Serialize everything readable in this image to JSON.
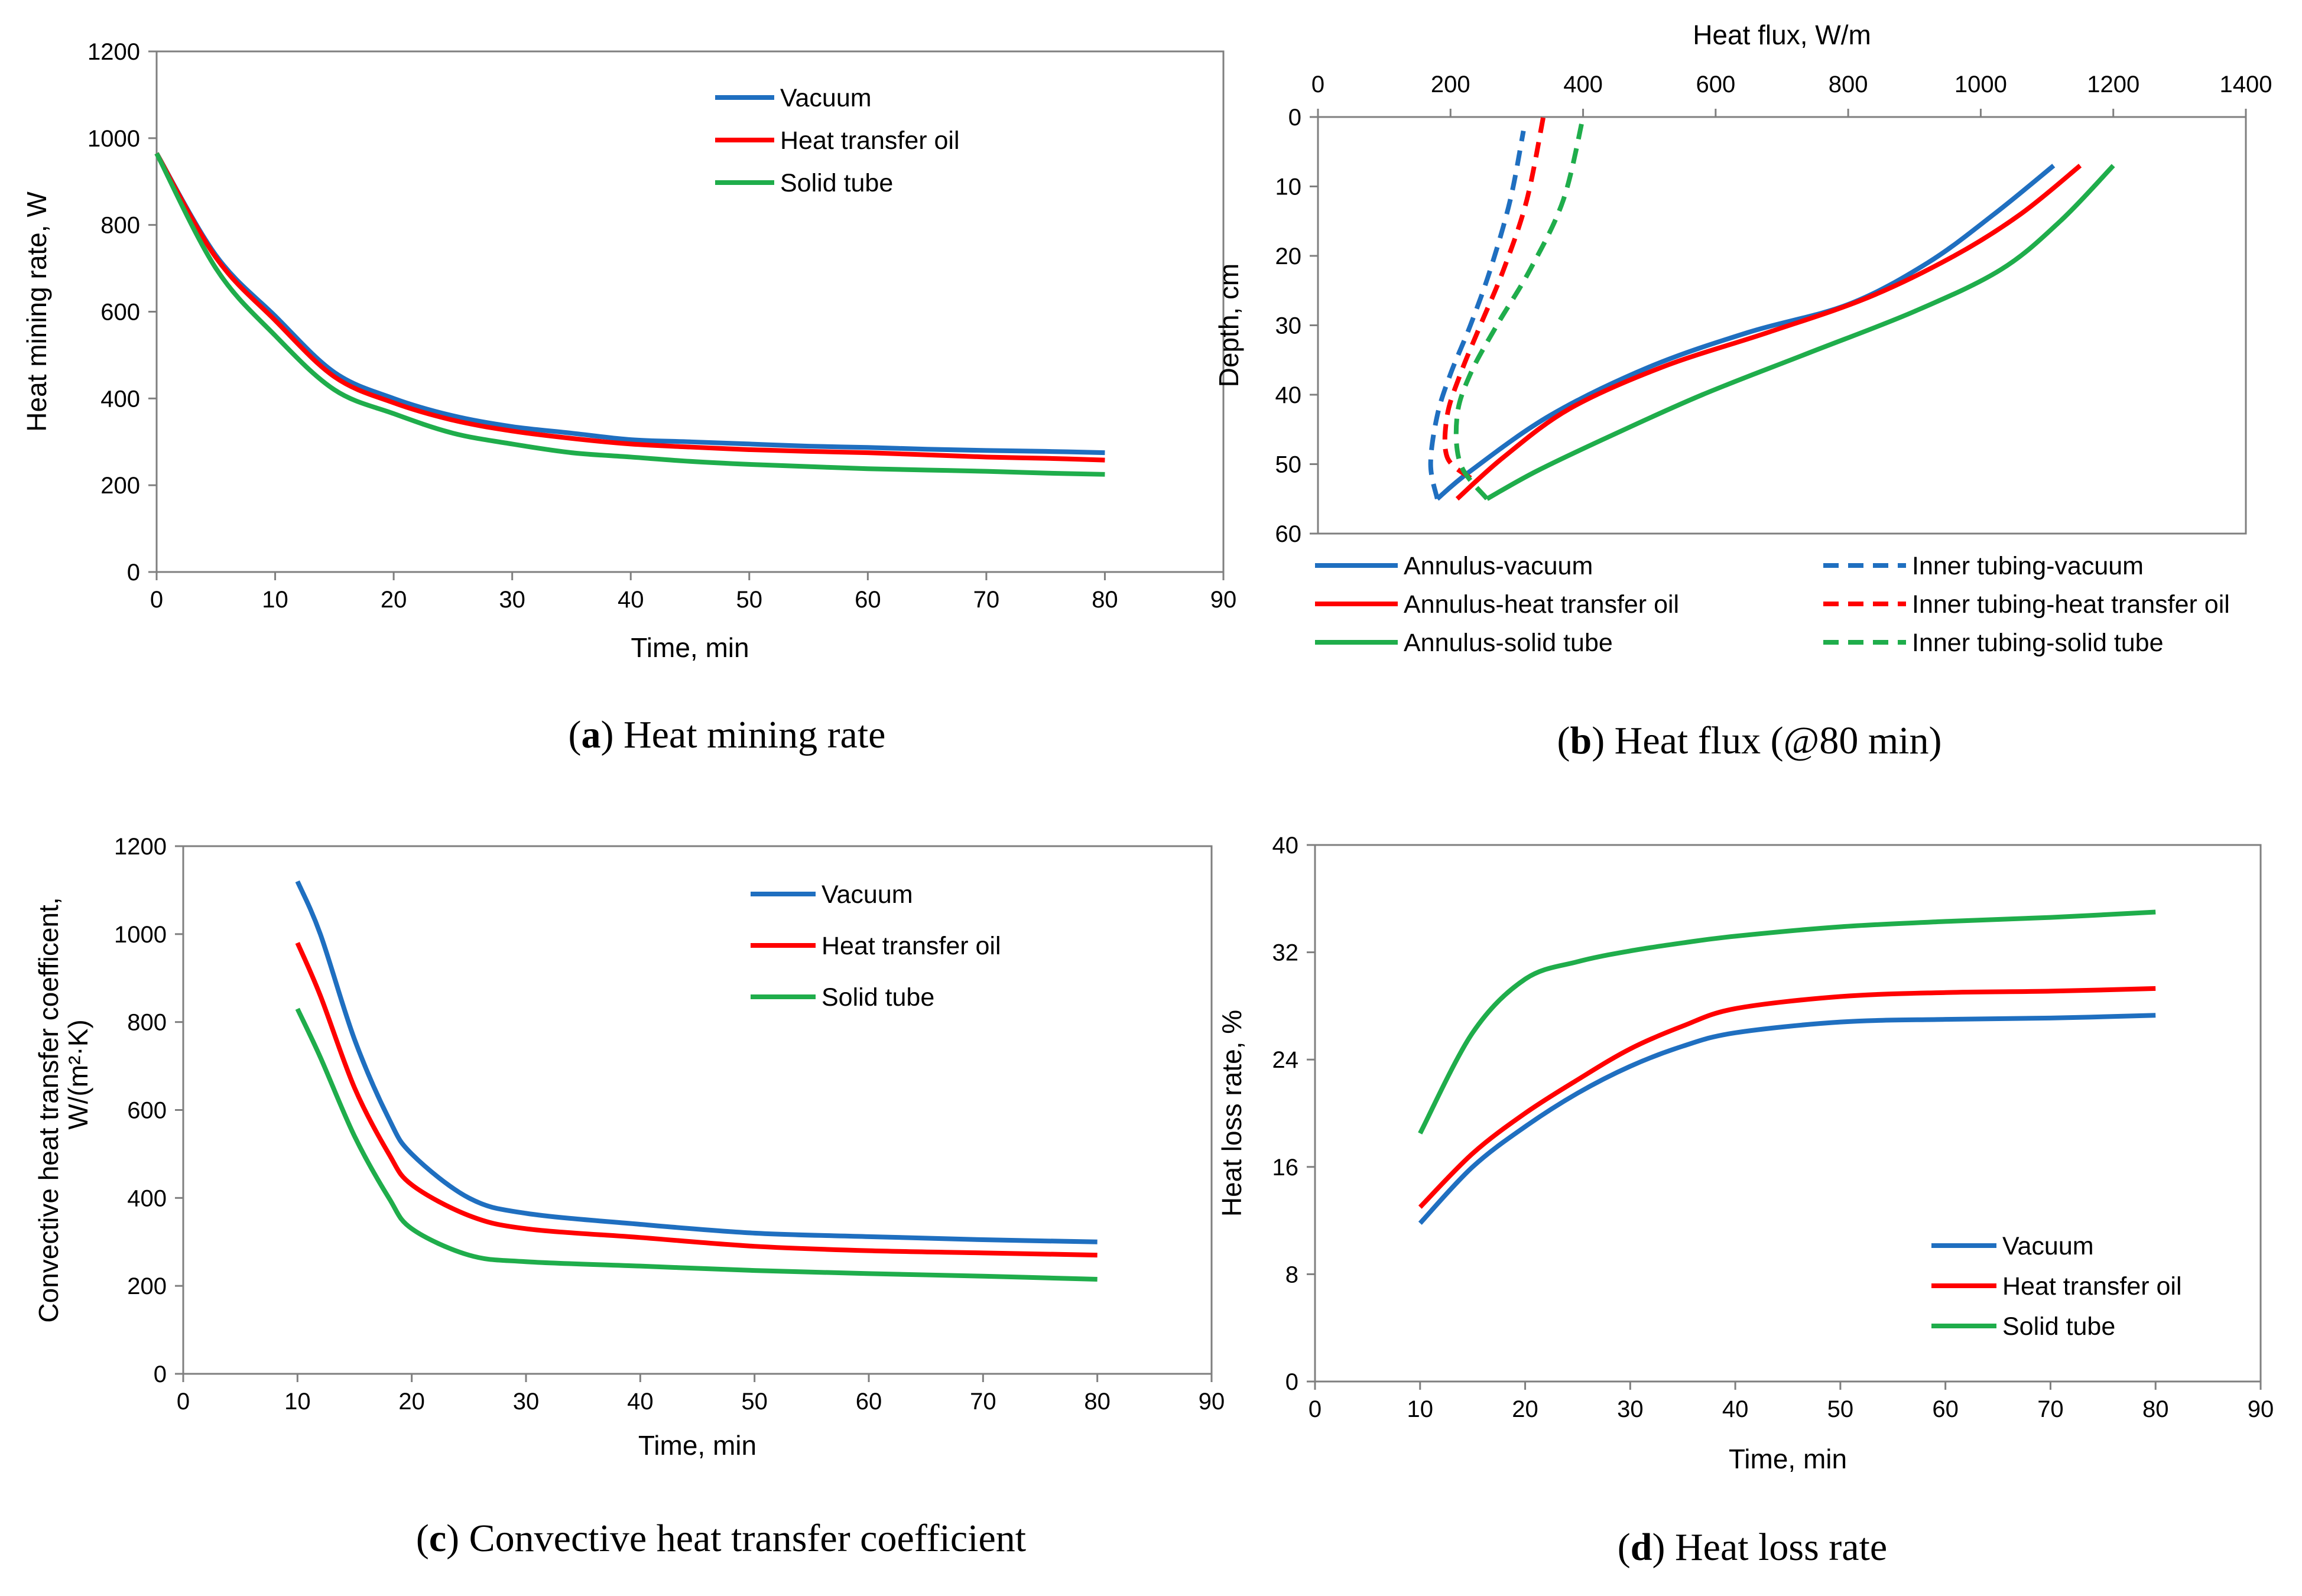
{
  "colors": {
    "vacuum": "#1f6fc0",
    "oil": "#ff0000",
    "solid": "#1fad4b",
    "axis": "#7f7f7f"
  },
  "chart_data": [
    {
      "id": "a",
      "type": "line",
      "caption": {
        "letter": "a",
        "text": "Heat mining rate"
      },
      "xlabel": "Time,  min",
      "ylabel": "Heat mining rate, W",
      "xlim": [
        0,
        90
      ],
      "ylim": [
        0,
        1200
      ],
      "xticks": [
        "0",
        "10",
        "20",
        "30",
        "40",
        "50",
        "60",
        "70",
        "80",
        "90"
      ],
      "yticks": [
        "0",
        "200",
        "400",
        "600",
        "800",
        "1000",
        "1200"
      ],
      "legend": [
        "Vacuum",
        "Heat transfer oil",
        "Solid tube"
      ],
      "series": [
        {
          "name": "Vacuum",
          "color_key": "vacuum",
          "dash": false,
          "x": [
            0,
            5,
            10,
            15,
            20,
            25,
            30,
            35,
            40,
            45,
            50,
            55,
            60,
            65,
            70,
            75,
            80
          ],
          "y": [
            965,
            730,
            590,
            460,
            400,
            360,
            335,
            320,
            305,
            300,
            295,
            290,
            287,
            283,
            280,
            278,
            275
          ]
        },
        {
          "name": "Heat transfer oil",
          "color_key": "oil",
          "dash": false,
          "x": [
            0,
            5,
            10,
            15,
            20,
            25,
            30,
            35,
            40,
            45,
            50,
            55,
            60,
            65,
            70,
            75,
            80
          ],
          "y": [
            965,
            725,
            580,
            450,
            390,
            350,
            325,
            308,
            295,
            288,
            282,
            278,
            275,
            270,
            265,
            262,
            258
          ]
        },
        {
          "name": "Solid tube",
          "color_key": "solid",
          "dash": false,
          "x": [
            0,
            5,
            10,
            15,
            20,
            25,
            30,
            35,
            40,
            45,
            50,
            55,
            60,
            65,
            70,
            75,
            80
          ],
          "y": [
            965,
            700,
            545,
            420,
            365,
            320,
            295,
            275,
            265,
            255,
            248,
            243,
            238,
            235,
            232,
            228,
            225
          ]
        }
      ]
    },
    {
      "id": "b",
      "type": "line",
      "caption": {
        "letter": "b",
        "text": "Heat flux (@80 min)"
      },
      "xlabel": "Heat flux, W/m",
      "ylabel": "Depth,  cm",
      "xlim": [
        0,
        1400
      ],
      "ylim": [
        0,
        60
      ],
      "x_axis_top": true,
      "y_inverted": true,
      "xticks": [
        "0",
        "200",
        "400",
        "600",
        "800",
        "1000",
        "1200",
        "1400"
      ],
      "yticks": [
        "0",
        "10",
        "20",
        "30",
        "40",
        "50",
        "60"
      ],
      "legend": [
        "Annulus-vacuum",
        "Annulus-heat transfer oil",
        "Annulus-solid tube",
        "Inner tubing-vacuum",
        "Inner tubing-heat transfer oil",
        "Inner tubing-solid tube"
      ],
      "series": [
        {
          "name": "Annulus-vacuum",
          "color_key": "vacuum",
          "dash": false,
          "x": [
            180,
            230,
            350,
            500,
            650,
            800,
            920,
            1020,
            1110
          ],
          "y": [
            55,
            51,
            43,
            36,
            31,
            27,
            21,
            14,
            7
          ]
        },
        {
          "name": "Annulus-heat transfer oil",
          "color_key": "oil",
          "dash": false,
          "x": [
            210,
            280,
            380,
            520,
            680,
            830,
            960,
            1060,
            1150
          ],
          "y": [
            55,
            49,
            42,
            36,
            31,
            26,
            20,
            14,
            7
          ]
        },
        {
          "name": "Annulus-solid tube",
          "color_key": "solid",
          "dash": false,
          "x": [
            255,
            330,
            440,
            580,
            740,
            900,
            1030,
            1120,
            1200
          ],
          "y": [
            55,
            51,
            46,
            40,
            34,
            28,
            22,
            15,
            7
          ]
        },
        {
          "name": "Inner tubing-vacuum",
          "color_key": "vacuum",
          "dash": true,
          "x": [
            180,
            170,
            180,
            200,
            230,
            260,
            290,
            310
          ],
          "y": [
            55,
            50,
            43,
            37,
            30,
            22,
            12,
            2
          ]
        },
        {
          "name": "Inner tubing-heat transfer oil",
          "color_key": "oil",
          "dash": true,
          "x": [
            230,
            195,
            195,
            215,
            245,
            280,
            315,
            340
          ],
          "y": [
            52,
            49,
            43,
            37,
            30,
            22,
            12,
            0
          ]
        },
        {
          "name": "Inner tubing-solid tube",
          "color_key": "solid",
          "dash": true,
          "x": [
            255,
            215,
            210,
            230,
            270,
            320,
            370,
            400
          ],
          "y": [
            55,
            50,
            43,
            37,
            30,
            22,
            12,
            0
          ]
        }
      ]
    },
    {
      "id": "c",
      "type": "line",
      "caption": {
        "letter": "c",
        "text": "Convective heat transfer coefficient"
      },
      "xlabel": "Time,  min",
      "ylabel": "Convective  heat transfer  coefficent,",
      "ylabel2": "W/(m²·K)",
      "xlim": [
        0,
        90
      ],
      "ylim": [
        0,
        1200
      ],
      "xticks": [
        "0",
        "10",
        "20",
        "30",
        "40",
        "50",
        "60",
        "70",
        "80",
        "90"
      ],
      "yticks": [
        "0",
        "200",
        "400",
        "600",
        "800",
        "1000",
        "1200"
      ],
      "legend": [
        "Vacuum",
        "Heat transfer oil",
        "Solid tube"
      ],
      "series": [
        {
          "name": "Vacuum",
          "color_key": "vacuum",
          "dash": false,
          "x": [
            10,
            12,
            15,
            18,
            20,
            25,
            30,
            40,
            50,
            60,
            70,
            80
          ],
          "y": [
            1120,
            1000,
            760,
            580,
            500,
            400,
            365,
            340,
            320,
            312,
            305,
            300
          ]
        },
        {
          "name": "Heat transfer oil",
          "color_key": "oil",
          "dash": false,
          "x": [
            10,
            12,
            15,
            18,
            20,
            25,
            30,
            40,
            50,
            60,
            70,
            80
          ],
          "y": [
            980,
            860,
            650,
            500,
            430,
            360,
            330,
            310,
            290,
            280,
            275,
            270
          ]
        },
        {
          "name": "Solid tube",
          "color_key": "solid",
          "dash": false,
          "x": [
            10,
            12,
            15,
            18,
            20,
            25,
            30,
            40,
            50,
            60,
            70,
            80
          ],
          "y": [
            830,
            720,
            540,
            400,
            330,
            270,
            255,
            245,
            235,
            228,
            222,
            215
          ]
        }
      ]
    },
    {
      "id": "d",
      "type": "line",
      "caption": {
        "letter": "d",
        "text": "Heat loss rate"
      },
      "xlabel": "Time,  min",
      "ylabel": "Heat loss rate, %",
      "xlim": [
        0,
        90
      ],
      "ylim": [
        0,
        40
      ],
      "xticks": [
        "0",
        "10",
        "20",
        "30",
        "40",
        "50",
        "60",
        "70",
        "80",
        "90"
      ],
      "yticks": [
        "0",
        "8",
        "16",
        "24",
        "32",
        "40"
      ],
      "legend": [
        "Vacuum",
        "Heat transfer oil",
        "Solid tube"
      ],
      "series": [
        {
          "name": "Vacuum",
          "color_key": "vacuum",
          "dash": false,
          "x": [
            10,
            15,
            20,
            25,
            30,
            35,
            40,
            50,
            60,
            70,
            80
          ],
          "y": [
            11.8,
            16,
            19,
            21.5,
            23.5,
            25,
            26,
            26.8,
            27,
            27.1,
            27.3
          ]
        },
        {
          "name": "Heat transfer oil",
          "color_key": "oil",
          "dash": false,
          "x": [
            10,
            15,
            20,
            25,
            30,
            35,
            40,
            50,
            60,
            70,
            80
          ],
          "y": [
            13,
            17,
            20,
            22.5,
            24.8,
            26.5,
            27.8,
            28.7,
            29,
            29.1,
            29.3
          ]
        },
        {
          "name": "Solid tube",
          "color_key": "solid",
          "dash": false,
          "x": [
            10,
            15,
            20,
            25,
            30,
            35,
            40,
            50,
            60,
            70,
            80
          ],
          "y": [
            18.5,
            26,
            30,
            31.3,
            32.1,
            32.7,
            33.2,
            33.9,
            34.3,
            34.6,
            35
          ]
        }
      ]
    }
  ]
}
